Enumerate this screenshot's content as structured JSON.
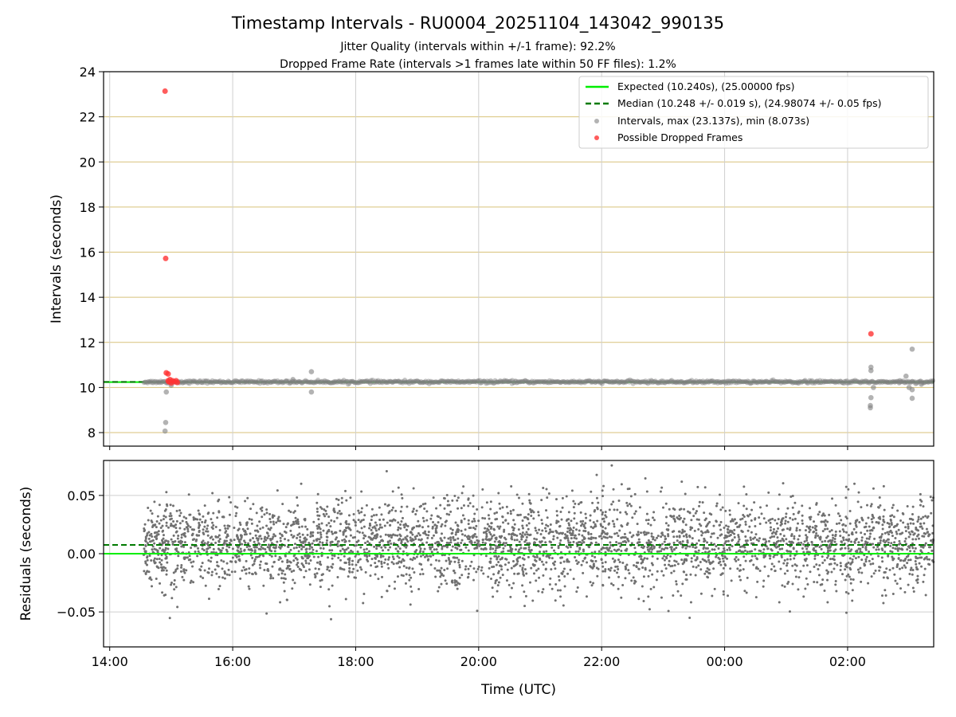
{
  "chart_data": [
    {
      "type": "scatter",
      "panel": "intervals",
      "title": "Timestamp Intervals - RU0004_20251104_143042_990135",
      "subtitle_lines": [
        "Jitter Quality (intervals within +/-1 frame): 92.2%",
        "Dropped Frame Rate (intervals >1 frames late within 50 FF files): 1.2%"
      ],
      "xlabel": "",
      "ylabel": "Intervals (seconds)",
      "xlim_hours": [
        13.9,
        27.4
      ],
      "ylim": [
        7.4,
        24
      ],
      "yticks": [
        8,
        10,
        12,
        14,
        16,
        18,
        20,
        22,
        24
      ],
      "ytick_labels": [
        "8",
        "10",
        "12",
        "14",
        "16",
        "18",
        "20",
        "22",
        "24"
      ],
      "grid": true,
      "legend_position": "top-right",
      "expected_interval": 10.24,
      "median_interval": 10.248,
      "series": [
        {
          "name": "Expected (10.240s), (25.00000 fps)",
          "style": "line",
          "color": "#00ee00",
          "value": 10.24
        },
        {
          "name": "Median (10.248 +/- 0.019 s), (24.98074 +/- 0.05 fps)",
          "style": "dashed",
          "color": "#007a00",
          "value": 10.248
        },
        {
          "name": "Intervals, max (23.137s), min (8.073s)",
          "style": "points",
          "color": "#808080",
          "baseline_time_range": [
            14.55,
            27.4
          ],
          "outliers": [
            {
              "t": 14.92,
              "v": 9.8
            },
            {
              "t": 14.91,
              "v": 8.45
            },
            {
              "t": 14.9,
              "v": 8.07
            },
            {
              "t": 15.0,
              "v": 10.1
            },
            {
              "t": 16.98,
              "v": 10.35
            },
            {
              "t": 17.28,
              "v": 10.7
            },
            {
              "t": 17.28,
              "v": 9.8
            },
            {
              "t": 26.38,
              "v": 10.9
            },
            {
              "t": 26.38,
              "v": 10.75
            },
            {
              "t": 26.38,
              "v": 9.55
            },
            {
              "t": 26.37,
              "v": 9.2
            },
            {
              "t": 26.37,
              "v": 9.1
            },
            {
              "t": 26.42,
              "v": 10.0
            },
            {
              "t": 26.95,
              "v": 10.5
            },
            {
              "t": 27.0,
              "v": 10.0
            },
            {
              "t": 27.05,
              "v": 9.9
            },
            {
              "t": 27.05,
              "v": 11.7
            },
            {
              "t": 27.05,
              "v": 9.52
            },
            {
              "t": 26.85,
              "v": 10.3
            },
            {
              "t": 27.2,
              "v": 10.15
            }
          ]
        },
        {
          "name": "Possible Dropped Frames",
          "style": "points",
          "color": "#ff3333",
          "points": [
            {
              "t": 14.9,
              "v": 23.137
            },
            {
              "t": 14.91,
              "v": 15.72
            },
            {
              "t": 26.38,
              "v": 12.38
            },
            {
              "t": 14.92,
              "v": 10.65
            },
            {
              "t": 14.95,
              "v": 10.6
            },
            {
              "t": 14.95,
              "v": 10.3
            },
            {
              "t": 14.96,
              "v": 10.25
            },
            {
              "t": 14.98,
              "v": 10.35
            },
            {
              "t": 15.0,
              "v": 10.2
            },
            {
              "t": 15.02,
              "v": 10.3
            },
            {
              "t": 15.05,
              "v": 10.25
            },
            {
              "t": 15.08,
              "v": 10.3
            },
            {
              "t": 15.1,
              "v": 10.22
            }
          ]
        }
      ]
    },
    {
      "type": "scatter",
      "panel": "residuals",
      "xlabel": "Time (UTC)",
      "ylabel": "Residuals (seconds)",
      "xlim_hours": [
        13.9,
        27.4
      ],
      "ylim": [
        -0.08,
        0.08
      ],
      "yticks": [
        0.05,
        0.0,
        -0.05
      ],
      "ytick_labels": [
        "0.05",
        "0.00",
        "−0.05"
      ],
      "xticks_hours": [
        14,
        16,
        18,
        20,
        22,
        24,
        26
      ],
      "xtick_labels": [
        "14:00",
        "16:00",
        "18:00",
        "20:00",
        "22:00",
        "00:00",
        "02:00"
      ],
      "grid": true,
      "expected_residual": 0.0,
      "median_residual": 0.0075,
      "residual_std": 0.019,
      "residual_mean": 0.008,
      "point_count": 3800,
      "point_color": "#707070",
      "time_range": [
        14.55,
        27.4
      ]
    }
  ]
}
